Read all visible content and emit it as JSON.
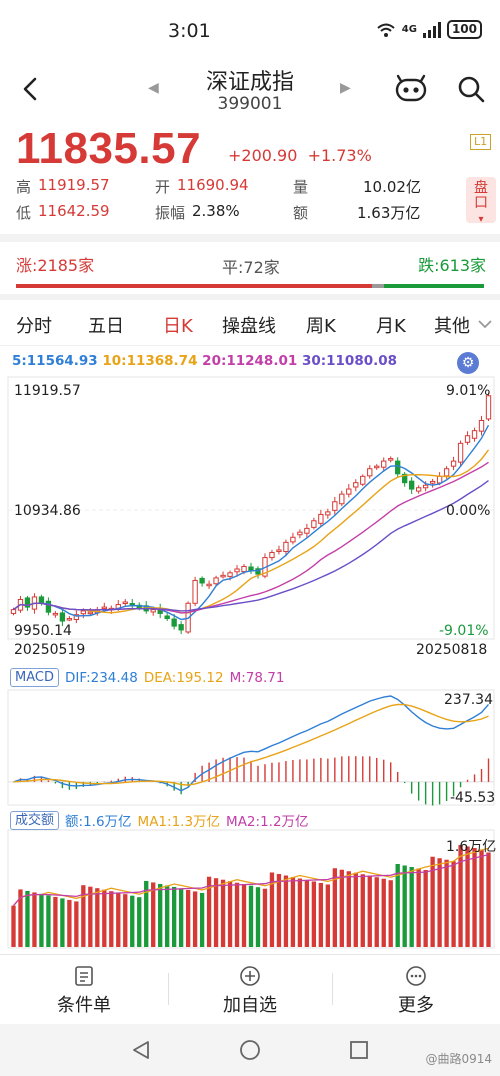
{
  "status": {
    "time": "3:01",
    "network": "4G",
    "battery": "100"
  },
  "header": {
    "name": "深证成指",
    "code": "399001"
  },
  "quote": {
    "price": "11835.57",
    "change": "+200.90",
    "change_pct": "+1.73%",
    "level": "L1",
    "high_label": "高",
    "high": "11919.57",
    "open_label": "开",
    "open": "11690.94",
    "vol_label": "量",
    "vol": "10.02亿",
    "low_label": "低",
    "low": "11642.59",
    "amp_label": "振幅",
    "amp": "2.38%",
    "amt_label": "额",
    "amt": "1.63万亿",
    "pankou": "盘口"
  },
  "breadth": {
    "up": "涨:2185家",
    "flat": "平:72家",
    "down": "跌:613家",
    "up_count": 2185,
    "flat_count": 72,
    "down_count": 613
  },
  "tabs": [
    "分时",
    "五日",
    "日K",
    "操盘线",
    "周K",
    "月K",
    "其他"
  ],
  "active_tab": "日K",
  "ma_legend": {
    "ma5": "5:11564.93",
    "ma10": "10:11368.74",
    "ma20": "20:11248.01",
    "ma30": "30:11080.08",
    "colors": {
      "ma5": "#2f7fd6",
      "ma10": "#e8a317",
      "ma20": "#c23fa8",
      "ma30": "#6b4fc8"
    }
  },
  "kline_axis": {
    "top": "11919.57",
    "mid": "10934.86",
    "bottom": "9950.14",
    "pct_top": "9.01%",
    "pct_mid": "0.00%",
    "pct_bottom": "-9.01%",
    "date_start": "20250519",
    "date_end": "20250818"
  },
  "macd": {
    "tag": "MACD",
    "dif": "DIF:234.48",
    "dea": "DEA:195.12",
    "m": "M:78.71",
    "top": "237.34",
    "bottom": "-45.53"
  },
  "volume": {
    "tag": "成交额",
    "amt": "额:1.6万亿",
    "ma1": "MA1:1.3万亿",
    "ma2": "MA2:1.2万亿",
    "top": "1.6万亿"
  },
  "bottom_bar": {
    "conditions": "条件单",
    "add_watch": "加自选",
    "more": "更多"
  },
  "watermark": "@曲路0914",
  "colors": {
    "up": "#d63a36",
    "down": "#1a9a3a"
  },
  "chart_data": {
    "type": "candlestick",
    "x_range": [
      "20250519",
      "20250818"
    ],
    "ylim": [
      9950.14,
      11919.57
    ],
    "closes": [
      10150,
      10230,
      10170,
      10250,
      10200,
      10130,
      10120,
      10060,
      10080,
      10110,
      10140,
      10130,
      10150,
      10170,
      10160,
      10190,
      10210,
      10180,
      10160,
      10140,
      10150,
      10120,
      10080,
      10020,
      9990,
      10200,
      10380,
      10360,
      10350,
      10400,
      10420,
      10440,
      10470,
      10490,
      10460,
      10430,
      10560,
      10600,
      10620,
      10680,
      10720,
      10760,
      10790,
      10850,
      10900,
      10920,
      11000,
      11060,
      11100,
      11150,
      11200,
      11260,
      11280,
      11320,
      11340,
      11220,
      11150,
      11100,
      11110,
      11130,
      11160,
      11200,
      11260,
      11320,
      11460,
      11520,
      11560,
      11640,
      11835
    ]
  }
}
